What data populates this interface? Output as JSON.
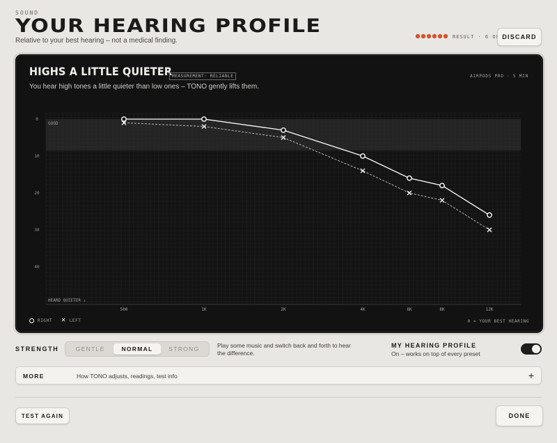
{
  "header": {
    "eyebrow": "SOUND",
    "title": "YOUR HEARING PROFILE",
    "subtitle": "Relative to your best hearing – not a medical finding.",
    "result_text": "RESULT · 6 OF 6",
    "result_dots": 6,
    "discard_label": "DISCARD"
  },
  "panel": {
    "title": "HIGHS A LITTLE QUIETER",
    "badge": "MEASUREMENT: RELIABLE",
    "device": "AIRPODS PRO · 5 MIN",
    "subtitle": "You hear high tones a little quieter than low ones – TONO gently lifts them.",
    "legend": {
      "right": "RIGHT",
      "left": "LEFT"
    },
    "footnote": "0 = YOUR BEST HEARING"
  },
  "chart_data": {
    "type": "line",
    "categories": [
      "500",
      "1K",
      "2K",
      "4K",
      "6K",
      "8K",
      "12K"
    ],
    "y_ticks": [
      "0",
      "10",
      "20",
      "30",
      "40"
    ],
    "ylim": [
      0,
      48
    ],
    "y_inverted": true,
    "ylabel": "HEARD QUIETER ↓",
    "band_label": "GOOD",
    "band": [
      0,
      10
    ],
    "grid": true,
    "series": [
      {
        "name": "RIGHT",
        "marker": "circle",
        "line": "solid",
        "color": "#ffffff",
        "values": [
          0,
          0,
          3,
          10,
          16,
          18,
          26
        ]
      },
      {
        "name": "LEFT",
        "marker": "x",
        "line": "dashed",
        "color": "#bbbbbb",
        "values": [
          1,
          2,
          5,
          14,
          20,
          22,
          30
        ]
      }
    ]
  },
  "strength": {
    "label": "STRENGTH",
    "options": [
      "GENTLE",
      "NORMAL",
      "STRONG"
    ],
    "selected": "NORMAL",
    "hint": "Play some music and switch back and forth to hear the difference."
  },
  "profile_toggle": {
    "label": "MY HEARING PROFILE",
    "sublabel": "On – works on top of every preset",
    "on": true
  },
  "more": {
    "label": "MORE",
    "desc": "How TONO adjusts, readings, test info",
    "icon": "plus-icon"
  },
  "footer": {
    "test_again": "TEST AGAIN",
    "done": "DONE"
  }
}
